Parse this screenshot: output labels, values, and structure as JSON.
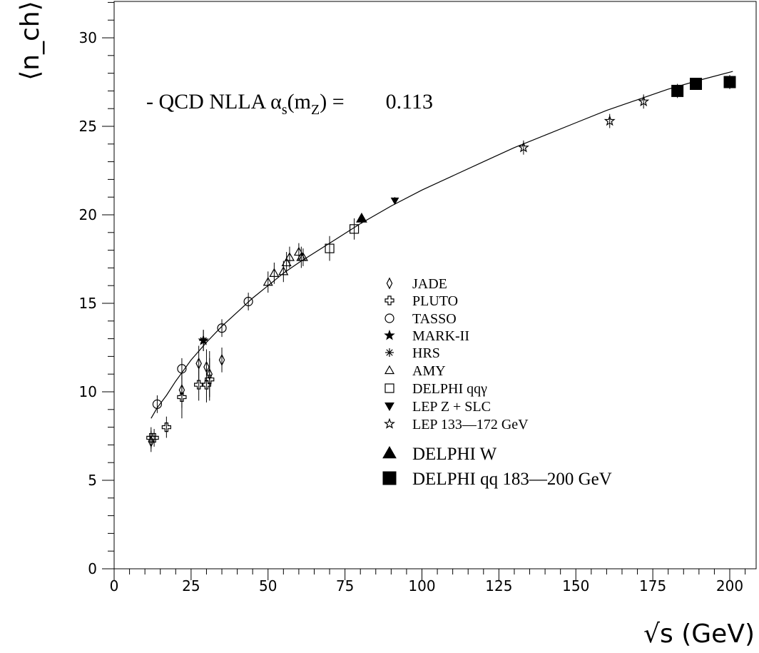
{
  "chart_data": {
    "type": "scatter",
    "xlabel": "√s (GeV)",
    "ylabel": "⟨n_ch⟩",
    "xlim": [
      0,
      210
    ],
    "ylim": [
      0,
      32
    ],
    "x_ticks": [
      0,
      25,
      50,
      75,
      100,
      125,
      150,
      175,
      200
    ],
    "y_ticks": [
      0,
      5,
      10,
      15,
      20,
      25,
      30
    ],
    "grid": false,
    "annotation": {
      "prefix": "- QCD NLLA ",
      "alpha": "α",
      "sub_s": "s",
      "m_open": "(m",
      "sub_Z": "Z",
      "close_eq": ") =",
      "value": "0.113"
    },
    "curve": {
      "name": "QCD NLLA",
      "points": [
        [
          12,
          8.5
        ],
        [
          14,
          9.1
        ],
        [
          17,
          9.8
        ],
        [
          20,
          10.6
        ],
        [
          25,
          11.8
        ],
        [
          30,
          12.8
        ],
        [
          35,
          13.7
        ],
        [
          40,
          14.5
        ],
        [
          45,
          15.3
        ],
        [
          50,
          16.0
        ],
        [
          55,
          16.7
        ],
        [
          60,
          17.3
        ],
        [
          70,
          18.4
        ],
        [
          80,
          19.5
        ],
        [
          90,
          20.5
        ],
        [
          100,
          21.4
        ],
        [
          110,
          22.2
        ],
        [
          120,
          23.0
        ],
        [
          130,
          23.8
        ],
        [
          140,
          24.5
        ],
        [
          150,
          25.2
        ],
        [
          160,
          25.9
        ],
        [
          170,
          26.5
        ],
        [
          180,
          27.1
        ],
        [
          190,
          27.6
        ],
        [
          201,
          28.1
        ]
      ]
    },
    "legend_position": "center-right",
    "series": [
      {
        "name": "JADE",
        "marker": "diamond",
        "points": [
          [
            12,
            7.2,
            0.6
          ],
          [
            22,
            10.1,
            1.0
          ],
          [
            27.5,
            11.6,
            1.0
          ],
          [
            30,
            11.4,
            1.0
          ],
          [
            31,
            11.0,
            1.3
          ],
          [
            35,
            11.8,
            0.7
          ]
        ]
      },
      {
        "name": "PLUTO",
        "marker": "cross-open",
        "points": [
          [
            12,
            7.4,
            0.6
          ],
          [
            13,
            7.4,
            0.5
          ],
          [
            17,
            8.0,
            0.6
          ],
          [
            22,
            9.7,
            1.2
          ],
          [
            27.5,
            10.4,
            0.9
          ],
          [
            30,
            10.4,
            1.0
          ],
          [
            31,
            10.7,
            1.2
          ]
        ]
      },
      {
        "name": "TASSO",
        "marker": "circle",
        "points": [
          [
            14,
            9.3,
            0.5
          ],
          [
            22,
            11.3,
            0.6
          ],
          [
            35,
            13.6,
            0.5
          ],
          [
            43.6,
            15.1,
            0.5
          ]
        ]
      },
      {
        "name": "MARK-II",
        "marker": "star-filled",
        "points": [
          [
            29,
            12.9,
            0.6
          ]
        ]
      },
      {
        "name": "HRS",
        "marker": "asterisk",
        "points": [
          [
            29,
            12.9,
            0.6
          ]
        ]
      },
      {
        "name": "AMY",
        "marker": "triangle-open",
        "points": [
          [
            50,
            16.2,
            0.6
          ],
          [
            52,
            16.7,
            0.6
          ],
          [
            55,
            16.8,
            0.6
          ],
          [
            56,
            17.3,
            0.6
          ],
          [
            57,
            17.6,
            0.6
          ],
          [
            60,
            17.9,
            0.5
          ],
          [
            60.8,
            17.6,
            0.6
          ],
          [
            61.4,
            17.6,
            0.5
          ]
        ]
      },
      {
        "name": "DELPHI qqγ",
        "marker": "square-open",
        "points": [
          [
            70,
            18.1,
            0.7
          ],
          [
            78,
            19.2,
            0.6
          ]
        ]
      },
      {
        "name": "LEP Z + SLC",
        "marker": "triangle-down-filled",
        "points": [
          [
            91.2,
            20.8,
            0.2
          ]
        ]
      },
      {
        "name": "LEP 133—172 GeV",
        "marker": "star-open",
        "points": [
          [
            133,
            23.8,
            0.4
          ],
          [
            161,
            25.3,
            0.4
          ],
          [
            172,
            26.4,
            0.4
          ]
        ]
      },
      {
        "name": "DELPHI W",
        "marker": "triangle-filled",
        "points": [
          [
            80.4,
            19.8,
            0.3
          ]
        ]
      },
      {
        "name": "DELPHI qq 183—200 GeV",
        "marker": "square-filled",
        "points": [
          [
            183,
            27.0,
            0.4
          ],
          [
            189,
            27.4,
            0.3
          ],
          [
            200,
            27.5,
            0.4
          ]
        ]
      }
    ]
  }
}
